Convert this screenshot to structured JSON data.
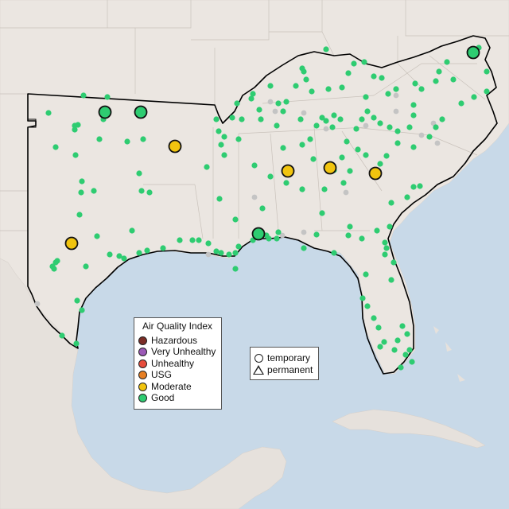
{
  "colors": {
    "ocean": "#c8d9e8",
    "land": "#ebe6e1",
    "good": "#2ecc71",
    "moderate": "#f1c40f",
    "usg": "#e67e22",
    "unhealthy": "#e74c3c",
    "very_unhealthy": "#9b59b6",
    "hazardous": "#7b2d26",
    "inactive": "#c4c4c4"
  },
  "legend": {
    "title": "Air Quality Index",
    "items": [
      {
        "label": "Hazardous",
        "color": "#7b2d26"
      },
      {
        "label": "Very Unhealthy",
        "color": "#9b59b6"
      },
      {
        "label": "Unhealthy",
        "color": "#e74c3c"
      },
      {
        "label": "USG",
        "color": "#e67e22"
      },
      {
        "label": "Moderate",
        "color": "#f1c40f"
      },
      {
        "label": "Good",
        "color": "#2ecc71"
      }
    ]
  },
  "type_legend": {
    "items": [
      {
        "label": "temporary",
        "icon": "circle-icon"
      },
      {
        "label": "permanent",
        "icon": "triangle-icon"
      }
    ]
  }
}
